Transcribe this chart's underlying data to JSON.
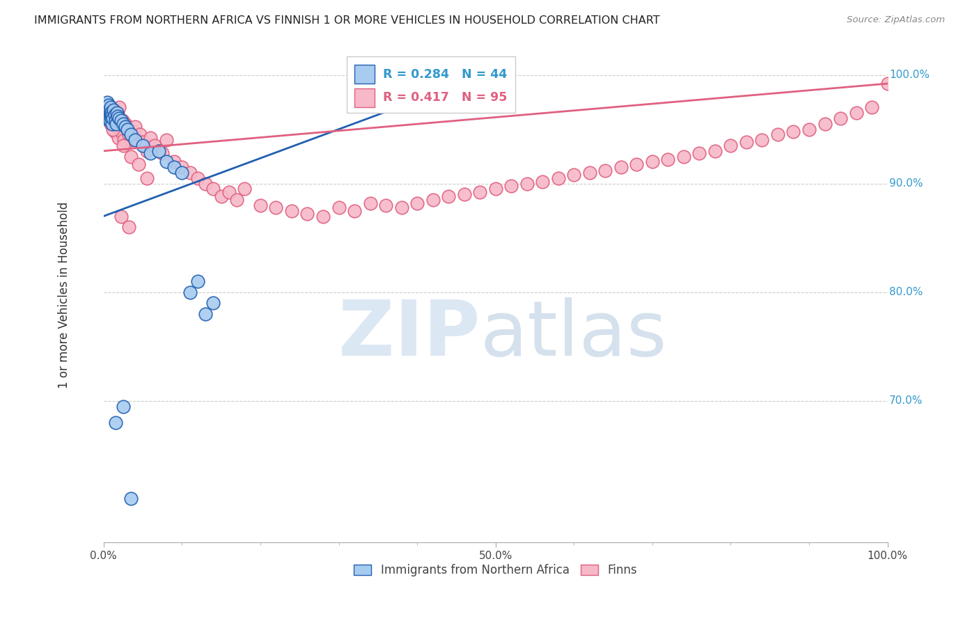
{
  "title": "IMMIGRANTS FROM NORTHERN AFRICA VS FINNISH 1 OR MORE VEHICLES IN HOUSEHOLD CORRELATION CHART",
  "source": "Source: ZipAtlas.com",
  "ylabel": "1 or more Vehicles in Household",
  "xlim": [
    0.0,
    1.0
  ],
  "ylim": [
    0.57,
    1.025
  ],
  "ytick_positions": [
    0.7,
    0.8,
    0.9,
    1.0
  ],
  "ytick_labels": [
    "70.0%",
    "80.0%",
    "90.0%",
    "100.0%"
  ],
  "blue_color": "#A8CBF0",
  "pink_color": "#F7B8C8",
  "blue_line_color": "#2060B0",
  "pink_line_color": "#E06080",
  "R_blue": 0.284,
  "N_blue": 44,
  "R_pink": 0.417,
  "N_pink": 95,
  "legend_label_blue": "Immigrants from Northern Africa",
  "legend_label_pink": "Finns",
  "blue_x": [
    0.002,
    0.003,
    0.004,
    0.005,
    0.005,
    0.006,
    0.006,
    0.007,
    0.007,
    0.008,
    0.008,
    0.009,
    0.009,
    0.01,
    0.01,
    0.011,
    0.011,
    0.012,
    0.013,
    0.014,
    0.015,
    0.016,
    0.017,
    0.018,
    0.02,
    0.022,
    0.025,
    0.028,
    0.03,
    0.035,
    0.04,
    0.05,
    0.06,
    0.07,
    0.08,
    0.09,
    0.1,
    0.11,
    0.12,
    0.13,
    0.14,
    0.015,
    0.025,
    0.035
  ],
  "blue_y": [
    0.96,
    0.965,
    0.97,
    0.968,
    0.975,
    0.972,
    0.962,
    0.968,
    0.96,
    0.965,
    0.958,
    0.963,
    0.97,
    0.96,
    0.966,
    0.955,
    0.963,
    0.96,
    0.968,
    0.963,
    0.958,
    0.955,
    0.965,
    0.962,
    0.96,
    0.958,
    0.955,
    0.952,
    0.95,
    0.945,
    0.94,
    0.935,
    0.928,
    0.93,
    0.92,
    0.915,
    0.91,
    0.8,
    0.81,
    0.78,
    0.79,
    0.68,
    0.695,
    0.61
  ],
  "pink_x": [
    0.002,
    0.003,
    0.004,
    0.005,
    0.006,
    0.007,
    0.008,
    0.009,
    0.01,
    0.011,
    0.012,
    0.013,
    0.014,
    0.015,
    0.016,
    0.017,
    0.018,
    0.019,
    0.02,
    0.022,
    0.024,
    0.026,
    0.028,
    0.03,
    0.032,
    0.035,
    0.038,
    0.04,
    0.043,
    0.046,
    0.05,
    0.055,
    0.06,
    0.065,
    0.07,
    0.075,
    0.08,
    0.09,
    0.1,
    0.11,
    0.12,
    0.13,
    0.14,
    0.15,
    0.16,
    0.17,
    0.18,
    0.2,
    0.22,
    0.24,
    0.26,
    0.28,
    0.3,
    0.32,
    0.34,
    0.36,
    0.38,
    0.4,
    0.42,
    0.44,
    0.46,
    0.48,
    0.5,
    0.52,
    0.54,
    0.56,
    0.58,
    0.6,
    0.62,
    0.64,
    0.66,
    0.68,
    0.7,
    0.72,
    0.74,
    0.76,
    0.78,
    0.8,
    0.82,
    0.84,
    0.86,
    0.88,
    0.9,
    0.92,
    0.94,
    0.96,
    0.98,
    1.0,
    0.025,
    0.035,
    0.045,
    0.055,
    0.012,
    0.022,
    0.032
  ],
  "pink_y": [
    0.968,
    0.965,
    0.962,
    0.96,
    0.972,
    0.958,
    0.965,
    0.955,
    0.963,
    0.96,
    0.955,
    0.968,
    0.948,
    0.958,
    0.953,
    0.96,
    0.965,
    0.942,
    0.97,
    0.948,
    0.958,
    0.94,
    0.955,
    0.952,
    0.945,
    0.94,
    0.948,
    0.952,
    0.94,
    0.945,
    0.938,
    0.93,
    0.942,
    0.935,
    0.93,
    0.928,
    0.94,
    0.92,
    0.915,
    0.91,
    0.905,
    0.9,
    0.895,
    0.888,
    0.892,
    0.885,
    0.895,
    0.88,
    0.878,
    0.875,
    0.872,
    0.87,
    0.878,
    0.875,
    0.882,
    0.88,
    0.878,
    0.882,
    0.885,
    0.888,
    0.89,
    0.892,
    0.895,
    0.898,
    0.9,
    0.902,
    0.905,
    0.908,
    0.91,
    0.912,
    0.915,
    0.918,
    0.92,
    0.922,
    0.925,
    0.928,
    0.93,
    0.935,
    0.938,
    0.94,
    0.945,
    0.948,
    0.95,
    0.955,
    0.96,
    0.965,
    0.97,
    0.992,
    0.935,
    0.925,
    0.918,
    0.905,
    0.95,
    0.87,
    0.86
  ],
  "blue_trendline_x": [
    0.0,
    0.45
  ],
  "blue_trendline_y": [
    0.87,
    0.99
  ],
  "pink_trendline_x": [
    0.0,
    1.0
  ],
  "pink_trendline_y": [
    0.93,
    0.992
  ]
}
